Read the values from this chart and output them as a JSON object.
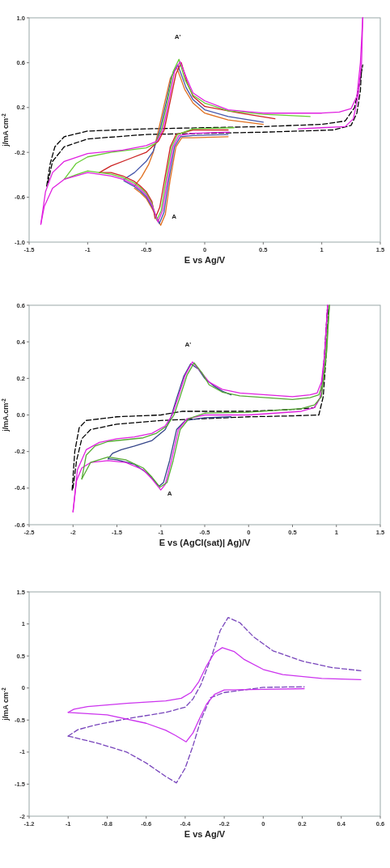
{
  "chart_data": [
    {
      "type": "line",
      "xlabel": "E vs Ag/V",
      "ylabel": "j/mA cm$^{-2}$",
      "xlim": [
        -1.5,
        1.5
      ],
      "ylim": [
        -1,
        1
      ],
      "xticks": [
        -1.5,
        -1,
        -0.5,
        0,
        0.5,
        1,
        1.5
      ],
      "yticks": [
        {
          "value": -1,
          "label": "-1.0"
        },
        -0.6,
        -0.2,
        0.2,
        0.6,
        {
          "value": 1,
          "label": "1.0"
        }
      ],
      "annotations": [
        "A'",
        "A"
      ],
      "series": [
        {
          "color": "#000000",
          "line_style": "dashed",
          "x": [
            -1.35,
            -1.32,
            -1.28,
            -1.2,
            -1.0,
            -0.5,
            0,
            0.5,
            1.0,
            1.2,
            1.28,
            1.32,
            1.35
          ],
          "values": [
            -0.5,
            -0.3,
            -0.15,
            -0.06,
            -0.01,
            0.01,
            0.02,
            0.03,
            0.05,
            0.08,
            0.2,
            0.4,
            0.58
          ]
        },
        {
          "color": "#000000",
          "line_style": "dashed",
          "x": [
            -1.34,
            -1.3,
            -1.2,
            -1.0,
            -0.5,
            0,
            0.5,
            1.1,
            1.25,
            1.3,
            1.33,
            1.34
          ],
          "values": [
            -0.47,
            -0.28,
            -0.15,
            -0.08,
            -0.04,
            -0.03,
            -0.02,
            0.0,
            0.04,
            0.15,
            0.35,
            0.55
          ]
        },
        {
          "color": "#e07020",
          "line_style": "solid",
          "x": [
            -0.6,
            -0.54,
            -0.48,
            -0.44,
            -0.394,
            -0.334,
            -0.294,
            -0.24,
            -0.17,
            -0.1,
            0,
            0.2,
            0.5
          ],
          "values": [
            -0.5,
            -0.42,
            -0.31,
            -0.2,
            0.0,
            0.28,
            0.46,
            0.56,
            0.36,
            0.24,
            0.15,
            0.09,
            0.05
          ]
        },
        {
          "color": "#e07020",
          "line_style": "solid",
          "x": [
            -0.6,
            -0.55,
            -0.5,
            -0.45,
            -0.376,
            -0.336,
            -0.296,
            -0.246,
            -0.196,
            -0.1,
            0.2
          ],
          "values": [
            -0.52,
            -0.56,
            -0.61,
            -0.7,
            -0.85,
            -0.75,
            -0.45,
            -0.15,
            -0.07,
            -0.07,
            -0.06
          ]
        },
        {
          "color": "#4455aa",
          "line_style": "solid",
          "x": [
            -0.69,
            -0.6,
            -0.5,
            -0.44,
            -0.382,
            -0.322,
            -0.282,
            -0.23,
            -0.16,
            -0.1,
            0,
            0.2,
            0.5
          ],
          "values": [
            -0.44,
            -0.38,
            -0.28,
            -0.19,
            0.0,
            0.28,
            0.48,
            0.58,
            0.38,
            0.27,
            0.18,
            0.12,
            0.07
          ]
        },
        {
          "color": "#4455aa",
          "line_style": "solid",
          "x": [
            -0.69,
            -0.6,
            -0.55,
            -0.5,
            -0.45,
            -0.388,
            -0.348,
            -0.308,
            -0.258,
            -0.208,
            -0.1,
            0.2
          ],
          "values": [
            -0.455,
            -0.505,
            -0.545,
            -0.595,
            -0.685,
            -0.835,
            -0.735,
            -0.45,
            -0.15,
            -0.06,
            -0.05,
            -0.04
          ]
        },
        {
          "color": "#cc2222",
          "line_style": "solid",
          "x": [
            -0.9,
            -0.8,
            -0.65,
            -0.5,
            -0.396,
            -0.346,
            -0.286,
            -0.246,
            -0.2,
            -0.15,
            -0.1,
            0,
            0.3,
            0.6
          ],
          "values": [
            -0.38,
            -0.32,
            -0.26,
            -0.2,
            -0.1,
            0.0,
            0.3,
            0.5,
            0.6,
            0.42,
            0.3,
            0.21,
            0.15,
            0.1
          ]
        },
        {
          "color": "#cc2222",
          "line_style": "solid",
          "x": [
            -0.9,
            -0.8,
            -0.7,
            -0.6,
            -0.55,
            -0.5,
            -0.45,
            -0.424,
            -0.384,
            -0.344,
            -0.294,
            -0.244,
            -0.1,
            0.2
          ],
          "values": [
            -0.38,
            -0.38,
            -0.41,
            -0.46,
            -0.5,
            -0.55,
            -0.64,
            -0.79,
            -0.69,
            -0.45,
            -0.15,
            -0.04,
            0.0,
            0.0
          ]
        },
        {
          "color": "#66cc33",
          "line_style": "solid",
          "x": [
            -1.2,
            -1.1,
            -1.0,
            -0.8,
            -0.5,
            -0.42,
            -0.37,
            -0.31,
            -0.27,
            -0.22,
            -0.17,
            -0.1,
            0,
            0.2,
            0.5,
            0.9
          ],
          "values": [
            -0.44,
            -0.3,
            -0.24,
            -0.2,
            -0.16,
            -0.12,
            0.0,
            0.3,
            0.52,
            0.63,
            0.45,
            0.31,
            0.24,
            0.17,
            0.14,
            0.12
          ]
        },
        {
          "color": "#66cc33",
          "line_style": "solid",
          "x": [
            -1.2,
            -1.1,
            -1.0,
            -0.8,
            -0.7,
            -0.6,
            -0.55,
            -0.5,
            -0.45,
            -0.41,
            -0.372,
            -0.332,
            -0.282,
            -0.232,
            -0.1,
            0.25
          ],
          "values": [
            -0.44,
            -0.4,
            -0.365,
            -0.395,
            -0.425,
            -0.475,
            -0.515,
            -0.565,
            -0.655,
            -0.805,
            -0.72,
            -0.45,
            -0.15,
            -0.04,
            0.01,
            0.02
          ]
        },
        {
          "color": "#e020e0",
          "line_style": "solid",
          "x": [
            0.8,
            1.0,
            1.2,
            1.27,
            1.31,
            1.34,
            1.35
          ],
          "values": [
            0.01,
            0.02,
            0.03,
            0.1,
            0.3,
            0.6,
            1.0
          ]
        },
        {
          "color": "#e020e0",
          "line_style": "solid",
          "x": [
            -1.4,
            -1.36,
            -1.3,
            -1.2,
            -1.0,
            -0.7,
            -0.5,
            -0.408,
            -0.358,
            -0.298,
            -0.258,
            -0.21,
            -0.15,
            -0.1,
            0,
            0.2,
            0.5,
            1.0,
            1.15,
            1.25,
            1.3,
            1.33,
            1.35
          ],
          "values": [
            -0.84,
            -0.55,
            -0.38,
            -0.28,
            -0.21,
            -0.18,
            -0.14,
            -0.1,
            0.0,
            0.3,
            0.52,
            0.61,
            0.45,
            0.33,
            0.26,
            0.18,
            0.15,
            0.15,
            0.16,
            0.19,
            0.3,
            0.6,
            1.0
          ]
        },
        {
          "color": "#e020e0",
          "line_style": "solid",
          "x": [
            -1.4,
            -1.37,
            -1.3,
            -1.2,
            -1.0,
            -0.8,
            -0.7,
            -0.6,
            -0.55,
            -0.5,
            -0.45,
            -0.4,
            -0.36,
            -0.32,
            -0.27,
            -0.22,
            -0.1,
            0.21
          ],
          "values": [
            -0.84,
            -0.68,
            -0.52,
            -0.44,
            -0.38,
            -0.41,
            -0.44,
            -0.49,
            -0.53,
            -0.58,
            -0.67,
            -0.82,
            -0.72,
            -0.45,
            -0.15,
            -0.05,
            -0.03,
            -0.02
          ]
        }
      ]
    },
    {
      "type": "line",
      "xlabel": "E vs (AgCl(sat)| Ag)/V",
      "ylabel": "j/mA.cm$^{-2}$",
      "xlim": [
        -2.5,
        1.5
      ],
      "ylim": [
        -0.6,
        0.6
      ],
      "xticks": [
        -2.5,
        -2,
        -1.5,
        -1,
        -0.5,
        0,
        0.5,
        1,
        1.5
      ],
      "yticks": [
        -0.6,
        -0.4,
        -0.2,
        {
          "value": 0,
          "label": "0.0"
        },
        0.2,
        0.4,
        0.6
      ],
      "annotations": [
        "A'",
        "A"
      ],
      "series": [
        {
          "color": "#000000",
          "line_style": "dashed",
          "x": [
            -2.01,
            -1.98,
            -1.93,
            -1.85,
            -1.5,
            -1.0,
            -0.75,
            0,
            0.5,
            0.75,
            0.82,
            0.86,
            0.9
          ],
          "values": [
            -0.41,
            -0.2,
            -0.07,
            -0.03,
            -0.01,
            0.0,
            0.02,
            0.02,
            0.03,
            0.04,
            0.1,
            0.3,
            0.6
          ]
        },
        {
          "color": "#000000",
          "line_style": "dashed",
          "x": [
            -2.0,
            -1.96,
            -1.9,
            -1.8,
            -1.5,
            -1.0,
            -0.5,
            0,
            0.5,
            0.8,
            0.85,
            0.88,
            0.91
          ],
          "values": [
            -0.4,
            -0.25,
            -0.13,
            -0.08,
            -0.05,
            -0.03,
            -0.02,
            -0.01,
            -0.005,
            0.0,
            0.1,
            0.3,
            0.58
          ]
        },
        {
          "color": "#334488",
          "line_style": "solid",
          "x": [
            -1.6,
            -1.55,
            -1.45,
            -1.3,
            -1.1,
            -0.95,
            -0.89,
            -0.82,
            -0.74,
            -0.66,
            -0.57,
            -0.5,
            -0.4,
            -0.3,
            -0.2
          ],
          "values": [
            -0.24,
            -0.21,
            -0.19,
            -0.17,
            -0.14,
            -0.08,
            -0.02,
            0.09,
            0.21,
            0.28,
            0.25,
            0.2,
            0.16,
            0.13,
            0.11
          ]
        },
        {
          "color": "#334488",
          "line_style": "solid",
          "x": [
            -1.6,
            -1.5,
            -1.3,
            -1.15,
            -1.02,
            -0.97,
            -0.9,
            -0.82,
            -0.72,
            -0.5,
            -0.2
          ],
          "values": [
            -0.24,
            -0.245,
            -0.27,
            -0.32,
            -0.39,
            -0.37,
            -0.25,
            -0.08,
            -0.03,
            -0.015,
            -0.01
          ]
        },
        {
          "color": "#e020e0",
          "line_style": "solid",
          "x": [
            -2.0,
            -1.95,
            -1.85,
            -1.7,
            -1.5,
            -1.3,
            -1.1,
            -0.95,
            -0.87,
            -0.8,
            -0.72,
            -0.64,
            -0.55,
            -0.45,
            -0.3,
            -0.1,
            0.2,
            0.5,
            0.7,
            0.78,
            0.83,
            0.87,
            0.9
          ],
          "values": [
            -0.53,
            -0.3,
            -0.19,
            -0.15,
            -0.13,
            -0.12,
            -0.1,
            -0.06,
            0.0,
            0.1,
            0.22,
            0.29,
            0.24,
            0.18,
            0.14,
            0.12,
            0.11,
            0.1,
            0.11,
            0.12,
            0.18,
            0.35,
            0.6
          ]
        },
        {
          "color": "#e020e0",
          "line_style": "solid",
          "x": [
            -2.0,
            -1.96,
            -1.9,
            -1.8,
            -1.6,
            -1.4,
            -1.2,
            -1.1,
            -1.0,
            -0.95,
            -0.88,
            -0.8,
            -0.7,
            -0.5,
            0,
            0.3,
            0.6,
            0.75,
            0.82,
            0.86,
            0.9
          ],
          "values": [
            -0.53,
            -0.36,
            -0.29,
            -0.26,
            -0.25,
            -0.26,
            -0.3,
            -0.35,
            -0.41,
            -0.38,
            -0.25,
            -0.08,
            -0.02,
            0.0,
            0.0,
            0.01,
            0.02,
            0.04,
            0.1,
            0.3,
            0.6
          ]
        },
        {
          "color": "#55aa33",
          "line_style": "solid",
          "x": [
            -1.9,
            -1.85,
            -1.75,
            -1.6,
            -1.4,
            -1.2,
            -1.05,
            -0.93,
            -0.85,
            -0.78,
            -0.7,
            -0.62,
            -0.53,
            -0.45,
            -0.3,
            -0.1,
            0.2,
            0.5,
            0.7,
            0.8,
            0.85,
            0.89,
            0.92
          ],
          "values": [
            -0.35,
            -0.22,
            -0.17,
            -0.145,
            -0.135,
            -0.125,
            -0.1,
            -0.06,
            0.0,
            0.1,
            0.22,
            0.285,
            0.23,
            0.165,
            0.125,
            0.105,
            0.095,
            0.085,
            0.095,
            0.11,
            0.18,
            0.35,
            0.6
          ]
        },
        {
          "color": "#55aa33",
          "line_style": "solid",
          "x": [
            -1.9,
            -1.8,
            -1.6,
            -1.4,
            -1.2,
            -1.1,
            -1.01,
            -0.93,
            -0.86,
            -0.78,
            -0.68,
            -0.5,
            0,
            0.3,
            0.6,
            0.75,
            0.83,
            0.875,
            0.92
          ],
          "values": [
            -0.35,
            -0.26,
            -0.23,
            -0.245,
            -0.29,
            -0.34,
            -0.395,
            -0.37,
            -0.25,
            -0.08,
            -0.02,
            0.01,
            0.015,
            0.025,
            0.035,
            0.055,
            0.1,
            0.3,
            0.6
          ]
        }
      ]
    },
    {
      "type": "line",
      "xlabel": "E vs Ag/V",
      "ylabel": "j/mA cm$^{-2}$",
      "xlim": [
        -1.2,
        0.6
      ],
      "ylim": [
        -2,
        1.5
      ],
      "xticks": [
        -1.2,
        -1,
        -0.8,
        -0.6,
        -0.4,
        -0.2,
        0,
        0.2,
        0.4,
        0.6
      ],
      "yticks": [
        -2,
        -1.5,
        -1,
        -0.5,
        0,
        0.5,
        1,
        1.5
      ],
      "series": [
        {
          "color": "#7744bb",
          "line_style": "dashed",
          "x": [
            -1.0,
            -0.85,
            -0.7,
            -0.6,
            -0.5,
            -0.445,
            -0.4,
            -0.36,
            -0.32,
            -0.27,
            -0.2,
            0.0,
            0.21
          ],
          "values": [
            -0.75,
            -0.86,
            -1.0,
            -1.17,
            -1.38,
            -1.48,
            -1.25,
            -0.9,
            -0.5,
            -0.15,
            -0.07,
            0.01,
            0.02
          ]
        },
        {
          "color": "#7744bb",
          "line_style": "dashed",
          "x": [
            -1.0,
            -0.95,
            -0.85,
            -0.7,
            -0.5,
            -0.4,
            -0.36,
            -0.32,
            -0.27,
            -0.22,
            -0.18,
            -0.12,
            -0.05,
            0.05,
            0.2,
            0.35,
            0.5
          ],
          "values": [
            -0.75,
            -0.65,
            -0.57,
            -0.48,
            -0.38,
            -0.3,
            -0.17,
            0.05,
            0.45,
            0.9,
            1.1,
            1.02,
            0.8,
            0.58,
            0.42,
            0.32,
            0.27
          ]
        },
        {
          "color": "#cc33ee",
          "line_style": "solid",
          "x": [
            -1.0,
            -0.8,
            -0.6,
            -0.5,
            -0.45,
            -0.395,
            -0.36,
            -0.33,
            -0.29,
            -0.25,
            -0.2,
            0.0,
            0.21
          ],
          "values": [
            -0.38,
            -0.42,
            -0.55,
            -0.66,
            -0.74,
            -0.84,
            -0.7,
            -0.5,
            -0.25,
            -0.1,
            -0.03,
            -0.02,
            -0.01
          ]
        },
        {
          "color": "#cc33ee",
          "line_style": "solid",
          "x": [
            -1.0,
            -0.97,
            -0.9,
            -0.7,
            -0.5,
            -0.42,
            -0.37,
            -0.33,
            -0.29,
            -0.25,
            -0.21,
            -0.15,
            -0.1,
            0,
            0.1,
            0.3,
            0.5
          ],
          "values": [
            -0.38,
            -0.33,
            -0.29,
            -0.24,
            -0.2,
            -0.16,
            -0.07,
            0.1,
            0.35,
            0.55,
            0.63,
            0.57,
            0.45,
            0.29,
            0.21,
            0.15,
            0.13
          ]
        }
      ]
    }
  ]
}
